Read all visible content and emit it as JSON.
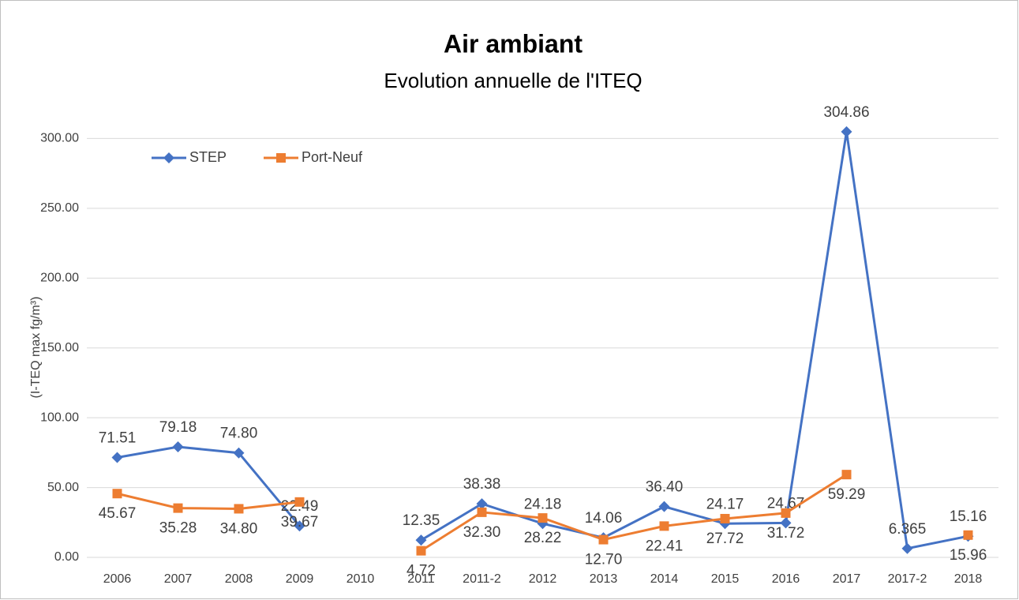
{
  "chart_data": {
    "type": "line",
    "title": "Air ambiant",
    "subtitle": "Evolution annuelle de l'ITEQ",
    "y_label": "(I-TEQ max fg/m³)",
    "categories": [
      "2006",
      "2007",
      "2008",
      "2009",
      "2010",
      "2011",
      "2011-2",
      "2012",
      "2013",
      "2014",
      "2015",
      "2016",
      "2017",
      "2017-2",
      "2018"
    ],
    "series": [
      {
        "name": "STEP",
        "color": "#4472c4",
        "marker": "diamond",
        "values": [
          71.51,
          79.18,
          74.8,
          22.49,
          null,
          12.35,
          38.38,
          24.18,
          14.06,
          36.4,
          24.17,
          24.67,
          304.86,
          6.365,
          15.16
        ],
        "value_labels": [
          "71.51",
          "79.18",
          "74.80",
          "22.49",
          null,
          "12.35",
          "38.38",
          "24.18",
          "14.06",
          "36.40",
          "24.17",
          "24.67",
          "304.86",
          "6.365",
          "15.16"
        ]
      },
      {
        "name": "Port-Neuf",
        "color": "#ed7d31",
        "marker": "square",
        "values": [
          45.67,
          35.28,
          34.8,
          39.67,
          null,
          4.72,
          32.3,
          28.22,
          12.7,
          22.41,
          27.72,
          31.72,
          59.29,
          null,
          15.96
        ],
        "value_labels": [
          "45.67",
          "35.28",
          "34.80",
          "39.67",
          null,
          "4.72",
          "32.30",
          "28.22",
          "12.70",
          "22.41",
          "27.72",
          "31.72",
          "59.29",
          null,
          "15.96"
        ]
      }
    ],
    "ylim": [
      0,
      350
    ],
    "yticks": [
      {
        "value": 0,
        "label": "0.00"
      },
      {
        "value": 50,
        "label": "50.00"
      },
      {
        "value": 100,
        "label": "100.00"
      },
      {
        "value": 150,
        "label": "150.00"
      },
      {
        "value": 200,
        "label": "200.00"
      },
      {
        "value": 250,
        "label": "250.00"
      },
      {
        "value": 300,
        "label": "300.00"
      }
    ],
    "grid": true,
    "legend": "upper left"
  }
}
